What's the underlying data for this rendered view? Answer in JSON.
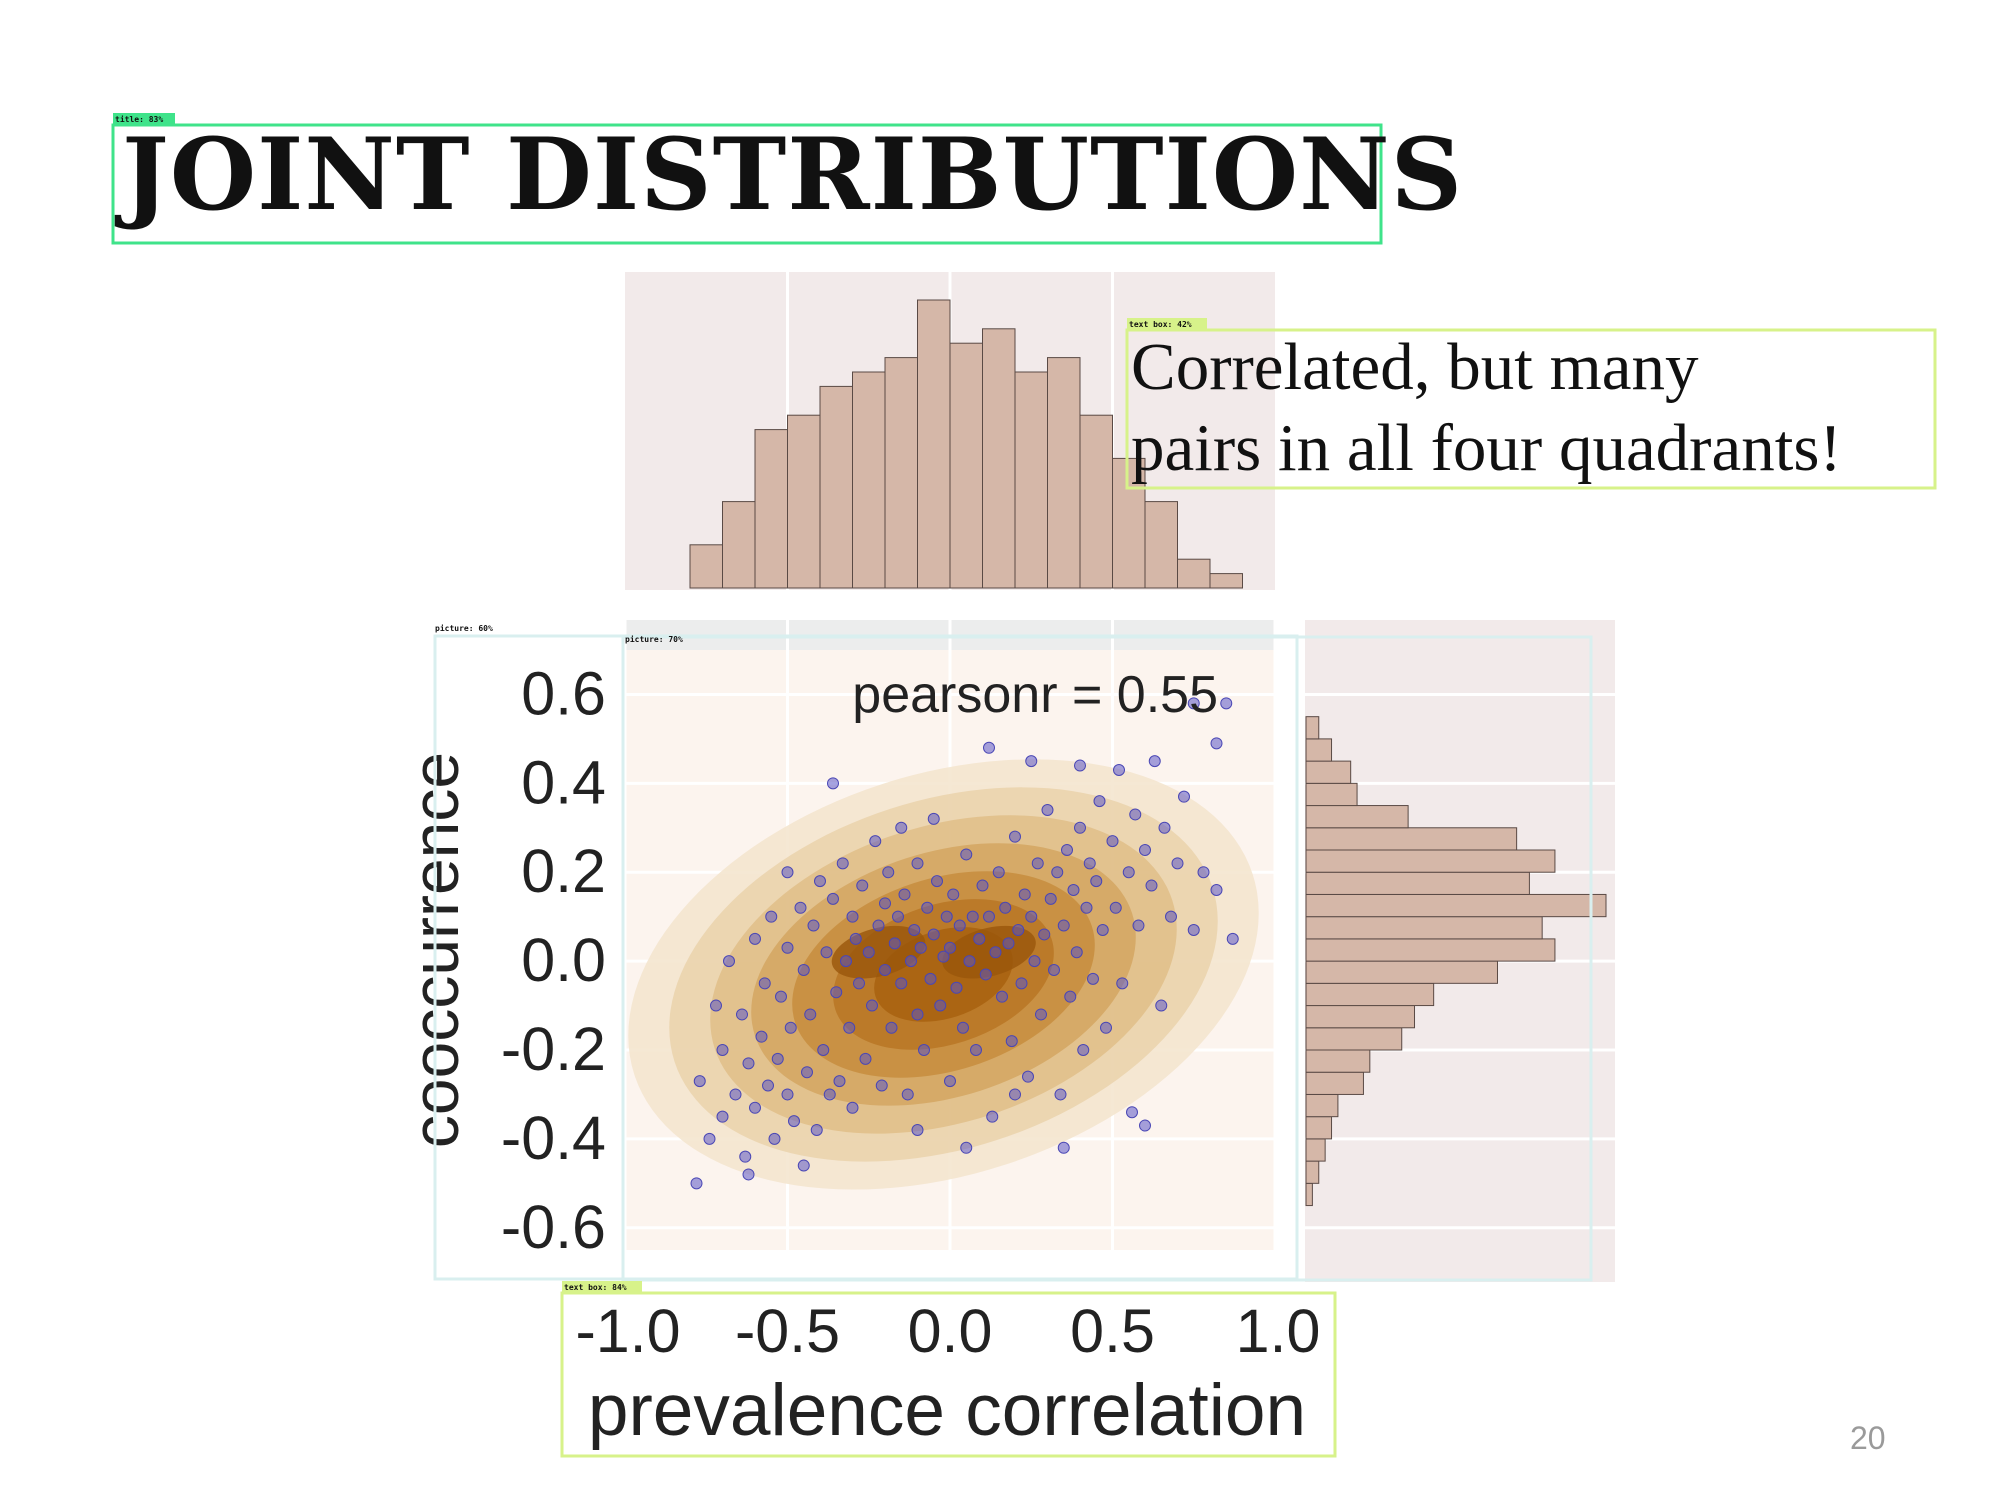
{
  "slide": {
    "title": "JOINT DISTRIBUTIONS",
    "callout_line1": "Correlated, but many",
    "callout_line2": "pairs in all four quadrants!",
    "page_number": "20"
  },
  "detection_labels": [
    {
      "text": "title: 83%",
      "color": "#3fe38a"
    },
    {
      "text": "text box: 42%",
      "color": "#d7f28a"
    },
    {
      "text": "picture: 60%",
      "color": "#d9efef"
    },
    {
      "text": "picture: 70%",
      "color": "#d9efef"
    },
    {
      "text": "text box: 84%",
      "color": "#d7f28a"
    }
  ],
  "chart_data": {
    "type": "scatter",
    "kind": "jointplot with kde contours and marginal histograms",
    "annotation": "pearsonr = 0.55",
    "pearson_r": 0.55,
    "xlabel": "prevalence correlation",
    "ylabel": "cooccurrence",
    "xlim": [
      -1.0,
      1.0
    ],
    "ylim": [
      -0.65,
      0.7
    ],
    "xticks": [
      "-1.0",
      "-0.5",
      "0.0",
      "0.5",
      "1.0"
    ],
    "xtick_values": [
      -1.0,
      -0.5,
      0.0,
      0.5,
      1.0
    ],
    "yticks": [
      "0.6",
      "0.4",
      "0.2",
      "0.0",
      "-0.2",
      "-0.4",
      "-0.6"
    ],
    "ytick_values": [
      0.6,
      0.4,
      0.2,
      0.0,
      -0.2,
      -0.4,
      -0.6
    ],
    "colors": {
      "point": "#5b58c9",
      "kde": [
        "#f3e4cc",
        "#ead2ab",
        "#e0be88",
        "#d4a662",
        "#c78d3e",
        "#b87624",
        "#a8620f"
      ],
      "hist": "#d5b7a8",
      "panel": "#f2eaea",
      "joint_bg": "#fcf4ee"
    },
    "x_marginal": {
      "bin_edges": [
        -0.8,
        -0.7,
        -0.6,
        -0.5,
        -0.4,
        -0.3,
        -0.2,
        -0.1,
        0.0,
        0.1,
        0.2,
        0.3,
        0.4,
        0.5,
        0.6,
        0.7,
        0.8,
        0.9
      ],
      "counts": [
        3,
        6,
        11,
        12,
        14,
        15,
        16,
        20,
        17,
        18,
        15,
        16,
        12,
        9,
        6,
        2,
        1
      ]
    },
    "y_marginal": {
      "bin_edges": [
        -0.55,
        -0.5,
        -0.45,
        -0.4,
        -0.35,
        -0.3,
        -0.25,
        -0.2,
        -0.15,
        -0.1,
        -0.05,
        0.0,
        0.05,
        0.1,
        0.15,
        0.2,
        0.25,
        0.3,
        0.35,
        0.4,
        0.45,
        0.5,
        0.55
      ],
      "counts": [
        1,
        2,
        3,
        4,
        5,
        9,
        10,
        15,
        17,
        20,
        30,
        39,
        37,
        47,
        35,
        39,
        33,
        16,
        8,
        7,
        4,
        2
      ]
    },
    "points": [
      [
        -0.78,
        -0.5
      ],
      [
        -0.77,
        -0.27
      ],
      [
        -0.74,
        -0.4
      ],
      [
        -0.72,
        -0.1
      ],
      [
        -0.7,
        -0.2
      ],
      [
        -0.7,
        -0.35
      ],
      [
        -0.68,
        0.0
      ],
      [
        -0.66,
        -0.3
      ],
      [
        -0.64,
        -0.12
      ],
      [
        -0.63,
        -0.44
      ],
      [
        -0.62,
        -0.23
      ],
      [
        -0.6,
        0.05
      ],
      [
        -0.6,
        -0.33
      ],
      [
        -0.58,
        -0.17
      ],
      [
        -0.57,
        -0.05
      ],
      [
        -0.56,
        -0.28
      ],
      [
        -0.55,
        0.1
      ],
      [
        -0.54,
        -0.4
      ],
      [
        -0.53,
        -0.22
      ],
      [
        -0.52,
        -0.08
      ],
      [
        -0.5,
        0.03
      ],
      [
        -0.5,
        -0.3
      ],
      [
        -0.49,
        -0.15
      ],
      [
        -0.48,
        -0.36
      ],
      [
        -0.46,
        0.12
      ],
      [
        -0.45,
        -0.02
      ],
      [
        -0.44,
        -0.25
      ],
      [
        -0.43,
        -0.12
      ],
      [
        -0.42,
        0.08
      ],
      [
        -0.41,
        -0.38
      ],
      [
        -0.4,
        0.18
      ],
      [
        -0.39,
        -0.2
      ],
      [
        -0.38,
        0.02
      ],
      [
        -0.37,
        -0.3
      ],
      [
        -0.36,
        0.14
      ],
      [
        -0.35,
        -0.07
      ],
      [
        -0.34,
        -0.27
      ],
      [
        -0.33,
        0.22
      ],
      [
        -0.32,
        0.0
      ],
      [
        -0.31,
        -0.15
      ],
      [
        -0.3,
        0.1
      ],
      [
        -0.3,
        -0.33
      ],
      [
        -0.29,
        0.05
      ],
      [
        -0.28,
        -0.05
      ],
      [
        -0.27,
        0.17
      ],
      [
        -0.26,
        -0.22
      ],
      [
        -0.25,
        0.02
      ],
      [
        -0.24,
        -0.1
      ],
      [
        -0.23,
        0.27
      ],
      [
        -0.22,
        0.08
      ],
      [
        -0.21,
        -0.28
      ],
      [
        -0.2,
        0.13
      ],
      [
        -0.2,
        -0.02
      ],
      [
        -0.19,
        0.2
      ],
      [
        -0.18,
        -0.15
      ],
      [
        -0.17,
        0.04
      ],
      [
        -0.16,
        0.1
      ],
      [
        -0.15,
        -0.05
      ],
      [
        -0.14,
        0.15
      ],
      [
        -0.13,
        -0.3
      ],
      [
        -0.12,
        0.0
      ],
      [
        -0.11,
        0.07
      ],
      [
        -0.1,
        -0.12
      ],
      [
        -0.1,
        0.22
      ],
      [
        -0.09,
        0.03
      ],
      [
        -0.08,
        -0.2
      ],
      [
        -0.07,
        0.12
      ],
      [
        -0.06,
        -0.04
      ],
      [
        -0.05,
        0.06
      ],
      [
        -0.04,
        0.18
      ],
      [
        -0.03,
        -0.1
      ],
      [
        -0.02,
        0.01
      ],
      [
        -0.01,
        0.1
      ],
      [
        0.0,
        -0.27
      ],
      [
        0.0,
        0.03
      ],
      [
        0.01,
        0.15
      ],
      [
        0.02,
        -0.06
      ],
      [
        0.03,
        0.08
      ],
      [
        0.04,
        -0.15
      ],
      [
        0.05,
        0.24
      ],
      [
        0.06,
        0.0
      ],
      [
        0.07,
        0.1
      ],
      [
        0.08,
        -0.2
      ],
      [
        0.09,
        0.05
      ],
      [
        0.1,
        0.17
      ],
      [
        0.11,
        -0.03
      ],
      [
        0.12,
        0.1
      ],
      [
        0.13,
        -0.35
      ],
      [
        0.14,
        0.02
      ],
      [
        0.15,
        0.2
      ],
      [
        0.16,
        -0.08
      ],
      [
        0.17,
        0.12
      ],
      [
        0.18,
        0.04
      ],
      [
        0.19,
        -0.18
      ],
      [
        0.2,
        0.28
      ],
      [
        0.21,
        0.07
      ],
      [
        0.22,
        -0.05
      ],
      [
        0.23,
        0.15
      ],
      [
        0.24,
        -0.26
      ],
      [
        0.25,
        0.1
      ],
      [
        0.26,
        0.0
      ],
      [
        0.27,
        0.22
      ],
      [
        0.28,
        -0.12
      ],
      [
        0.29,
        0.06
      ],
      [
        0.3,
        0.34
      ],
      [
        0.31,
        0.14
      ],
      [
        0.32,
        -0.02
      ],
      [
        0.33,
        0.2
      ],
      [
        0.34,
        -0.3
      ],
      [
        0.35,
        0.08
      ],
      [
        0.36,
        0.25
      ],
      [
        0.37,
        -0.08
      ],
      [
        0.38,
        0.16
      ],
      [
        0.39,
        0.02
      ],
      [
        0.4,
        0.3
      ],
      [
        0.41,
        -0.2
      ],
      [
        0.42,
        0.12
      ],
      [
        0.43,
        0.22
      ],
      [
        0.44,
        -0.04
      ],
      [
        0.45,
        0.18
      ],
      [
        0.46,
        0.36
      ],
      [
        0.47,
        0.07
      ],
      [
        0.48,
        -0.15
      ],
      [
        0.5,
        0.27
      ],
      [
        0.51,
        0.12
      ],
      [
        0.52,
        0.43
      ],
      [
        0.53,
        -0.05
      ],
      [
        0.55,
        0.2
      ],
      [
        0.56,
        -0.34
      ],
      [
        0.57,
        0.33
      ],
      [
        0.58,
        0.08
      ],
      [
        0.6,
        0.25
      ],
      [
        0.62,
        0.17
      ],
      [
        0.63,
        0.45
      ],
      [
        0.65,
        -0.1
      ],
      [
        0.66,
        0.3
      ],
      [
        0.68,
        0.1
      ],
      [
        0.7,
        0.22
      ],
      [
        0.72,
        0.37
      ],
      [
        0.75,
        0.58
      ],
      [
        0.75,
        0.07
      ],
      [
        0.78,
        0.2
      ],
      [
        0.82,
        0.49
      ],
      [
        0.82,
        0.16
      ],
      [
        0.85,
        0.58
      ],
      [
        0.87,
        0.05
      ],
      [
        -0.36,
        0.4
      ],
      [
        -0.05,
        0.32
      ],
      [
        0.12,
        0.48
      ],
      [
        0.25,
        0.45
      ],
      [
        -0.15,
        0.3
      ],
      [
        0.4,
        0.44
      ],
      [
        -0.5,
        0.2
      ],
      [
        0.35,
        -0.42
      ],
      [
        0.6,
        -0.37
      ],
      [
        -0.62,
        -0.48
      ],
      [
        -0.45,
        -0.46
      ],
      [
        -0.1,
        -0.38
      ],
      [
        0.2,
        -0.3
      ],
      [
        0.05,
        -0.42
      ]
    ]
  }
}
